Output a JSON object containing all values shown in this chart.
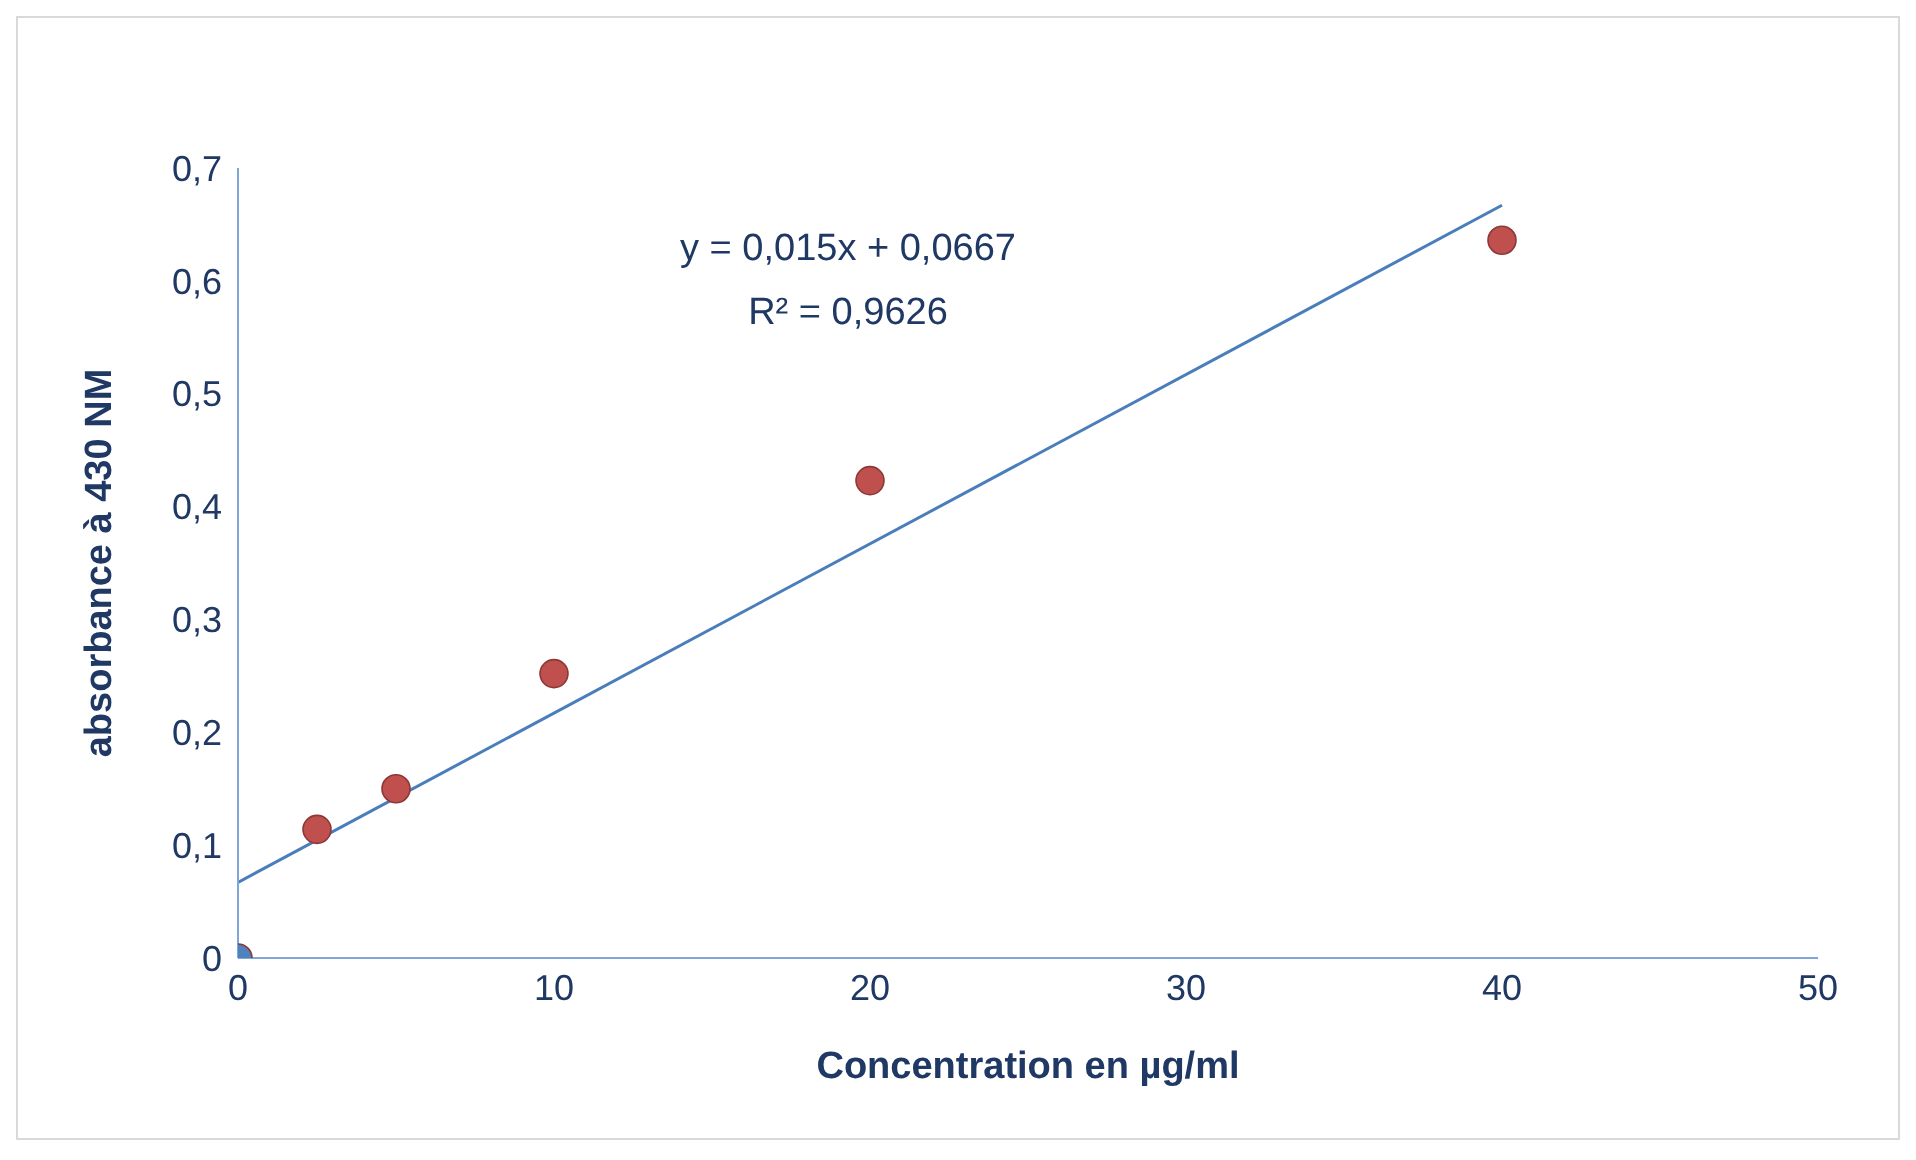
{
  "chart_data": {
    "type": "scatter",
    "xlabel": "Concentration en µg/ml",
    "ylabel": "absorbance à 430 NM",
    "xlim": [
      0,
      50
    ],
    "xticks": [
      0,
      10,
      20,
      30,
      40,
      50
    ],
    "ylim": [
      0,
      0.7
    ],
    "yticks": [
      {
        "value": 0,
        "label": "0"
      },
      {
        "value": 0.1,
        "label": "0,1"
      },
      {
        "value": 0.2,
        "label": "0,2"
      },
      {
        "value": 0.3,
        "label": "0,3"
      },
      {
        "value": 0.4,
        "label": "0,4"
      },
      {
        "value": 0.5,
        "label": "0,5"
      },
      {
        "value": 0.6,
        "label": "0,6"
      },
      {
        "value": 0.7,
        "label": "0,7"
      }
    ],
    "grid": false,
    "legend": false,
    "marker": "circle",
    "series": [
      {
        "type": "line",
        "marker": "none",
        "color": "#4a7ebb",
        "x": [
          0,
          40
        ],
        "values": [
          0.067,
          0.667
        ]
      },
      {
        "color": "#4f81bd",
        "x": [
          0
        ],
        "values": [
          0
        ]
      },
      {
        "color": "#c0504d",
        "x": [
          2.5,
          5,
          10,
          20,
          40
        ],
        "values": [
          0.114,
          0.15,
          0.252,
          0.423,
          0.636
        ]
      }
    ],
    "annotations": [
      "y = 0,015x + 0,0667",
      "R² = 0,9626"
    ]
  }
}
